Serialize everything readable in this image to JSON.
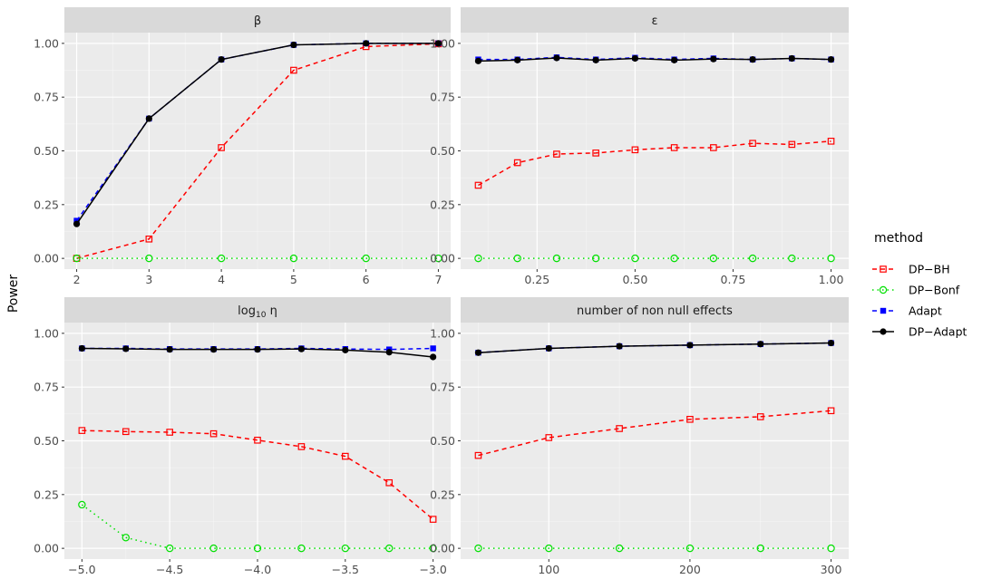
{
  "chart_data": {
    "type": "line",
    "ylabel": "Power",
    "legend": {
      "title": "method",
      "position": "right",
      "entries": [
        {
          "name": "DP−BH",
          "color": "#ff0000",
          "dash": "dashed",
          "marker": "open-square"
        },
        {
          "name": "DP−Bonf",
          "color": "#00e000",
          "dash": "dotted",
          "marker": "open-circle"
        },
        {
          "name": "Adapt",
          "color": "#0000ff",
          "dash": "dashed",
          "marker": "filled-square"
        },
        {
          "name": "DP−Adapt",
          "color": "#000000",
          "dash": "solid",
          "marker": "filled-circle"
        }
      ]
    },
    "grid": true,
    "panels": [
      {
        "strip": "β",
        "xlim": [
          1.83,
          7.17
        ],
        "ylim": [
          -0.05,
          1.05
        ],
        "xticks": [
          2,
          3,
          4,
          5,
          6,
          7
        ],
        "xtick_labels": [
          "2",
          "3",
          "4",
          "5",
          "6",
          "7"
        ],
        "yticks": [
          0,
          0.25,
          0.5,
          0.75,
          1.0
        ],
        "ytick_labels": [
          "0.00",
          "0.25",
          "0.50",
          "0.75",
          "1.00"
        ],
        "x": [
          2,
          3,
          4,
          5,
          6,
          7
        ],
        "series": [
          {
            "name": "DP−BH",
            "values": [
              0.0,
              0.09,
              0.515,
              0.875,
              0.985,
              0.998
            ]
          },
          {
            "name": "DP−Bonf",
            "values": [
              0.0,
              0.0,
              0.0,
              0.0,
              0.0,
              0.0
            ]
          },
          {
            "name": "Adapt",
            "values": [
              0.175,
              0.65,
              0.925,
              0.993,
              1.0,
              1.0
            ]
          },
          {
            "name": "DP−Adapt",
            "values": [
              0.16,
              0.65,
              0.925,
              0.993,
              1.0,
              1.0
            ]
          }
        ]
      },
      {
        "strip": "ε",
        "xlim": [
          0.055,
          1.045
        ],
        "ylim": [
          -0.05,
          1.05
        ],
        "xticks": [
          0.25,
          0.5,
          0.75,
          1.0
        ],
        "xtick_labels": [
          "0.25",
          "0.50",
          "0.75",
          "1.00"
        ],
        "yticks": [
          0,
          0.25,
          0.5,
          0.75,
          1.0
        ],
        "ytick_labels": [
          "0.00",
          "0.25",
          "0.50",
          "0.75",
          "1.00"
        ],
        "x": [
          0.1,
          0.2,
          0.3,
          0.4,
          0.5,
          0.6,
          0.7,
          0.8,
          0.9,
          1.0
        ],
        "series": [
          {
            "name": "DP−BH",
            "values": [
              0.34,
              0.445,
              0.485,
              0.49,
              0.505,
              0.515,
              0.515,
              0.535,
              0.53,
              0.545
            ]
          },
          {
            "name": "DP−Bonf",
            "values": [
              0,
              0,
              0,
              0,
              0,
              0,
              0,
              0,
              0,
              0
            ]
          },
          {
            "name": "Adapt",
            "values": [
              0.925,
              0.925,
              0.935,
              0.925,
              0.933,
              0.925,
              0.93,
              0.925,
              0.93,
              0.925
            ]
          },
          {
            "name": "DP−Adapt",
            "values": [
              0.918,
              0.922,
              0.932,
              0.922,
              0.93,
              0.922,
              0.927,
              0.925,
              0.93,
              0.925
            ]
          }
        ]
      },
      {
        "strip": "log",
        "strip_sub": "10",
        "strip_tail": " η",
        "xlim": [
          -5.1,
          -2.9
        ],
        "ylim": [
          -0.05,
          1.05
        ],
        "xticks": [
          -5.0,
          -4.5,
          -4.0,
          -3.5,
          -3.0
        ],
        "xtick_labels": [
          "−5.0",
          "−4.5",
          "−4.0",
          "−3.5",
          "−3.0"
        ],
        "yticks": [
          0,
          0.25,
          0.5,
          0.75,
          1.0
        ],
        "ytick_labels": [
          "0.00",
          "0.25",
          "0.50",
          "0.75",
          "1.00"
        ],
        "x": [
          -5.0,
          -4.75,
          -4.5,
          -4.25,
          -4.0,
          -3.75,
          -3.5,
          -3.25,
          -3.0
        ],
        "series": [
          {
            "name": "DP−BH",
            "values": [
              0.548,
              0.543,
              0.54,
              0.533,
              0.503,
              0.473,
              0.428,
              0.305,
              0.135
            ]
          },
          {
            "name": "DP−Bonf",
            "values": [
              0.203,
              0.05,
              0.0,
              0.0,
              0.0,
              0.0,
              0.0,
              0.0,
              0.0
            ]
          },
          {
            "name": "Adapt",
            "values": [
              0.93,
              0.93,
              0.927,
              0.927,
              0.927,
              0.93,
              0.927,
              0.925,
              0.93
            ]
          },
          {
            "name": "DP−Adapt",
            "values": [
              0.93,
              0.928,
              0.925,
              0.925,
              0.925,
              0.927,
              0.922,
              0.912,
              0.89
            ]
          }
        ]
      },
      {
        "strip": "number of non null effects",
        "xlim": [
          37.5,
          312.5
        ],
        "ylim": [
          -0.05,
          1.05
        ],
        "xticks": [
          100,
          200,
          300
        ],
        "xtick_labels": [
          "100",
          "200",
          "300"
        ],
        "yticks": [
          0,
          0.25,
          0.5,
          0.75,
          1.0
        ],
        "ytick_labels": [
          "0.00",
          "0.25",
          "0.50",
          "0.75",
          "1.00"
        ],
        "x": [
          50,
          100,
          150,
          200,
          250,
          300
        ],
        "series": [
          {
            "name": "DP−BH",
            "values": [
              0.432,
              0.515,
              0.557,
              0.6,
              0.612,
              0.64
            ]
          },
          {
            "name": "DP−Bonf",
            "values": [
              0,
              0,
              0,
              0,
              0,
              0
            ]
          },
          {
            "name": "Adapt",
            "values": [
              0.91,
              0.93,
              0.94,
              0.945,
              0.95,
              0.955
            ]
          },
          {
            "name": "DP−Adapt",
            "values": [
              0.91,
              0.93,
              0.94,
              0.945,
              0.95,
              0.955
            ]
          }
        ]
      }
    ]
  }
}
